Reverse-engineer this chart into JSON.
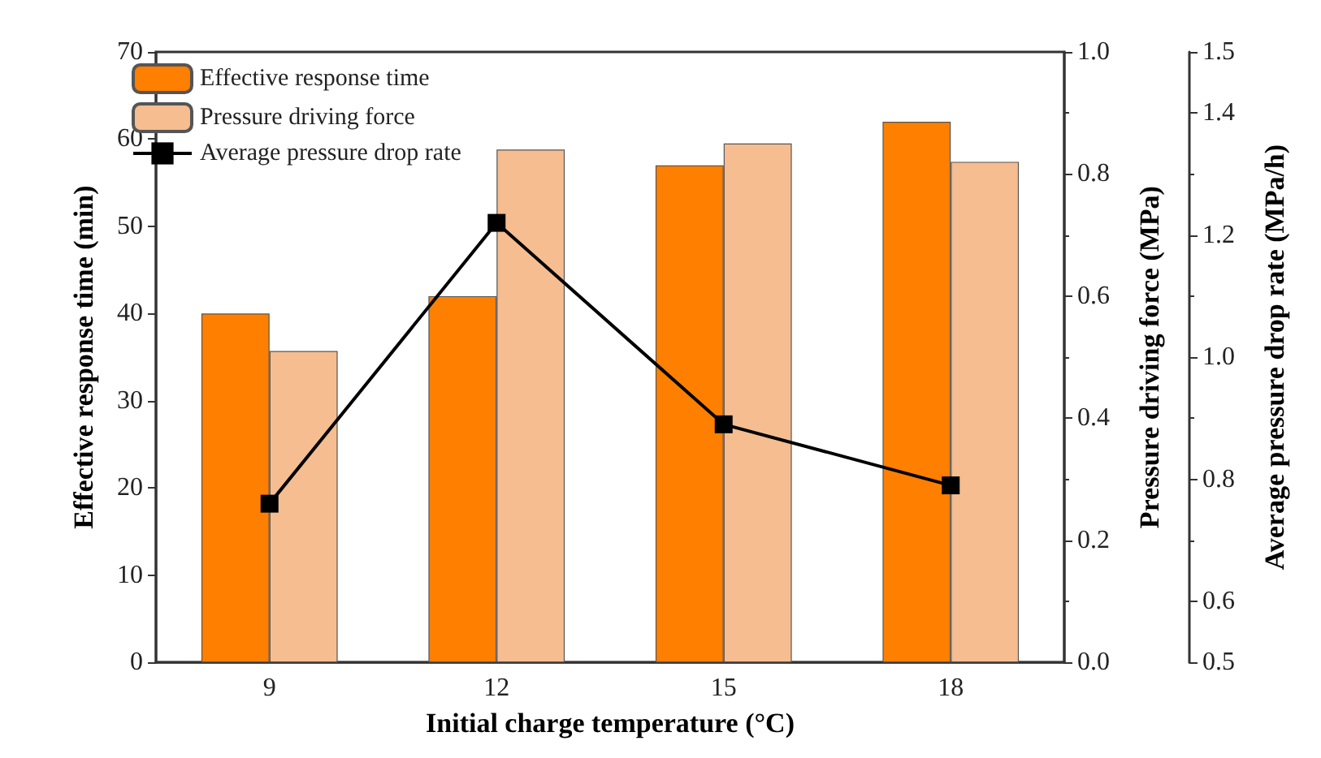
{
  "chart_data": {
    "type": "bar",
    "xlabel": "Initial charge temperature (°C)",
    "ylabel": "Effective response time (min)",
    "y2label": "Pressure driving force (MPa)",
    "y3label": "Average pressure drop rate (MPa/h)",
    "categories": [
      "9",
      "12",
      "15",
      "18"
    ],
    "series": [
      {
        "name": "Effective response time",
        "color": "#ff7f00",
        "values": [
          40,
          42,
          57,
          62
        ]
      },
      {
        "name": "Pressure driving force",
        "color": "#f5bd90",
        "axis": "y2",
        "values": [
          0.51,
          0.84,
          0.85,
          0.82
        ]
      },
      {
        "name": "Average pressure drop rate",
        "type": "line",
        "color": "#000000",
        "axis": "y3",
        "marker": "square",
        "line_style": "solid",
        "values": [
          0.76,
          1.22,
          0.89,
          0.79
        ]
      }
    ],
    "ylim": [
      0,
      70
    ],
    "yticks": [
      0,
      10,
      20,
      30,
      40,
      50,
      60,
      70
    ],
    "y2lim": [
      0,
      1
    ],
    "y2ticks": [
      {
        "value": 0,
        "label": "0.0"
      },
      0.2,
      0.4,
      0.6,
      0.8,
      {
        "value": 1,
        "label": "1.0"
      }
    ],
    "y3lim": [
      0.5,
      1.5
    ],
    "y3ticks": [
      0.5,
      0.6,
      0.8,
      {
        "value": 1,
        "label": "1.0"
      },
      1.2,
      1.4,
      1.5
    ],
    "grid": false,
    "legend": "top left"
  }
}
